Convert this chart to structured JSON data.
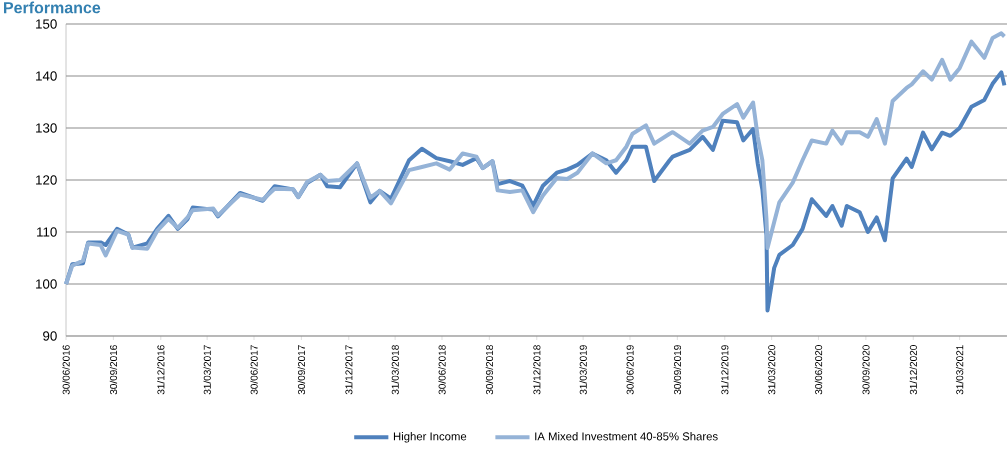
{
  "chart_data": {
    "type": "line",
    "title": "Performance",
    "x": [
      "2016-06-30",
      "2016-07-12",
      "2016-08-02",
      "2016-08-12",
      "2016-09-05",
      "2016-09-15",
      "2016-10-07",
      "2016-10-29",
      "2016-11-06",
      "2016-12-05",
      "2016-12-24",
      "2017-01-15",
      "2017-02-02",
      "2017-02-21",
      "2017-03-03",
      "2017-04-12",
      "2017-04-21",
      "2017-06-03",
      "2017-07-17",
      "2017-08-09",
      "2017-09-14",
      "2017-09-24",
      "2017-10-11",
      "2017-11-06",
      "2017-11-19",
      "2017-12-14",
      "2018-01-16",
      "2018-02-11",
      "2018-03-01",
      "2018-03-23",
      "2018-04-27",
      "2018-05-22",
      "2018-06-19",
      "2018-07-15",
      "2018-08-09",
      "2018-09-05",
      "2018-09-17",
      "2018-10-06",
      "2018-10-16",
      "2018-11-09",
      "2018-12-03",
      "2018-12-24",
      "2019-01-12",
      "2019-02-08",
      "2019-02-28",
      "2019-03-20",
      "2019-04-18",
      "2019-05-15",
      "2019-06-03",
      "2019-06-23",
      "2019-07-05",
      "2019-07-31",
      "2019-08-16",
      "2019-09-15",
      "2019-09-21",
      "2019-10-24",
      "2019-11-18",
      "2019-12-08",
      "2019-12-27",
      "2020-01-24",
      "2020-02-05",
      "2020-02-24",
      "2020-03-04",
      "2020-03-13",
      "2020-03-21",
      "2020-03-23",
      "2020-04-05",
      "2020-04-15",
      "2020-05-11",
      "2020-05-30",
      "2020-06-17",
      "2020-07-15",
      "2020-07-27",
      "2020-08-14",
      "2020-08-24",
      "2020-09-18",
      "2020-10-04",
      "2020-10-21",
      "2020-11-06",
      "2020-11-21",
      "2020-12-18",
      "2020-12-28",
      "2021-01-19",
      "2021-02-05",
      "2021-02-25",
      "2021-03-13",
      "2021-03-31",
      "2021-04-23",
      "2021-05-18",
      "2021-06-03",
      "2021-06-20",
      "2021-06-26"
    ],
    "series": [
      {
        "name": "Higher Income",
        "color": "#4f81bd",
        "values": [
          100,
          103.8,
          104,
          108,
          108,
          107.5,
          110.6,
          109.5,
          107,
          107.8,
          110.6,
          113.1,
          110.6,
          112.5,
          114.7,
          114.3,
          113,
          117.5,
          116,
          118.8,
          118.2,
          116.7,
          119.4,
          121,
          118.8,
          118.6,
          123.2,
          115.7,
          117.9,
          116.4,
          123.8,
          126,
          124.2,
          123.6,
          122.9,
          124.2,
          122.3,
          123.6,
          119.2,
          119.8,
          118.9,
          115,
          118.9,
          121.4,
          122,
          122.9,
          125.1,
          123.8,
          121.4,
          123.8,
          126.4,
          126.4,
          119.8,
          123.8,
          124.5,
          125.8,
          128.3,
          125.8,
          131.4,
          131.1,
          127.6,
          129.8,
          123.2,
          118.2,
          109.4,
          94.9,
          103.1,
          105.6,
          107.5,
          110.6,
          116.3,
          113.1,
          115,
          111.2,
          115,
          113.8,
          110,
          112.8,
          108.4,
          120.3,
          124.1,
          122.5,
          129.1,
          125.9,
          129.1,
          128.5,
          130,
          134.1,
          135.4,
          138.5,
          140.7,
          138.2
        ]
      },
      {
        "name": "IA Mixed Investment 40-85% Shares",
        "color": "#95b3d7",
        "values": [
          100,
          103.5,
          104.5,
          107.8,
          107.5,
          105.5,
          110.2,
          109.5,
          107,
          106.8,
          110.2,
          112.5,
          110.8,
          112.8,
          114.2,
          114.5,
          113.2,
          117.2,
          116.2,
          118.3,
          118.2,
          116.7,
          119.6,
          121,
          119.8,
          120,
          123.2,
          116.6,
          117.9,
          115.5,
          121.9,
          122.5,
          123.2,
          122,
          125.1,
          124.5,
          122.3,
          123.6,
          118,
          117.7,
          118,
          113.8,
          117,
          120.4,
          120.2,
          121.4,
          125.1,
          123.2,
          123.8,
          126.4,
          128.9,
          130.5,
          127,
          128.9,
          129.2,
          127,
          129.5,
          130.2,
          132.7,
          134.6,
          132,
          134.9,
          128.3,
          123.8,
          112.5,
          106.9,
          111.9,
          115.7,
          119.5,
          123.8,
          127.6,
          127,
          129.5,
          127,
          129.2,
          129.2,
          128.3,
          131.7,
          127,
          135.2,
          137.7,
          138.4,
          140.9,
          139.3,
          143.1,
          139.3,
          141.5,
          146.6,
          143.5,
          147.3,
          148.2,
          147.6
        ]
      }
    ],
    "xlim": [
      "2016-06-30",
      "2021-07-01"
    ],
    "xticks": [
      {
        "value": "2016-06-30",
        "label": "30/06/2016"
      },
      {
        "value": "2016-09-30",
        "label": "30/09/2016"
      },
      {
        "value": "2016-12-31",
        "label": "31/12/2016"
      },
      {
        "value": "2017-03-31",
        "label": "31/03/2017"
      },
      {
        "value": "2017-06-30",
        "label": "30/06/2017"
      },
      {
        "value": "2017-09-30",
        "label": "30/09/2017"
      },
      {
        "value": "2017-12-31",
        "label": "31/12/2017"
      },
      {
        "value": "2018-03-31",
        "label": "31/03/2018"
      },
      {
        "value": "2018-06-30",
        "label": "30/06/2018"
      },
      {
        "value": "2018-09-30",
        "label": "30/09/2018"
      },
      {
        "value": "2018-12-31",
        "label": "31/12/2018"
      },
      {
        "value": "2019-03-31",
        "label": "31/03/2019"
      },
      {
        "value": "2019-06-30",
        "label": "30/06/2019"
      },
      {
        "value": "2019-09-30",
        "label": "30/09/2019"
      },
      {
        "value": "2019-12-31",
        "label": "31/12/2019"
      },
      {
        "value": "2020-03-31",
        "label": "31/03/2020"
      },
      {
        "value": "2020-06-30",
        "label": "30/06/2020"
      },
      {
        "value": "2020-09-30",
        "label": "30/09/2020"
      },
      {
        "value": "2020-12-31",
        "label": "31/12/2020"
      },
      {
        "value": "2021-03-31",
        "label": "31/03/2021"
      }
    ],
    "ylim": [
      90,
      150
    ],
    "yticks": [
      90,
      100,
      110,
      120,
      130,
      140,
      150
    ],
    "grid": "y",
    "legend": "bottom"
  }
}
